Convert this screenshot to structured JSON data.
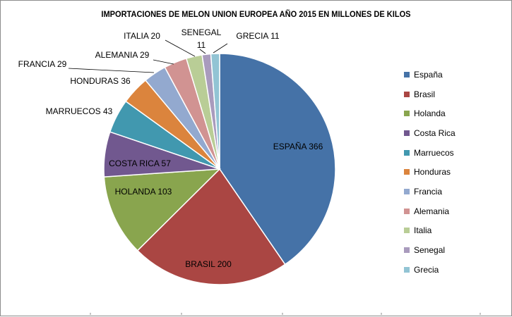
{
  "chart_data": {
    "type": "pie",
    "title": "IMPORTACIONES DE MELON UNION EUROPEA AÑO 2015 EN MILLONES DE KILOS",
    "categories": [
      "España",
      "Brasil",
      "Holanda",
      "Costa Rica",
      "Marruecos",
      "Honduras",
      "Francia",
      "Alemania",
      "Italia",
      "Senegal",
      "Grecia"
    ],
    "values": [
      366,
      200,
      103,
      57,
      43,
      36,
      29,
      29,
      20,
      11,
      11
    ],
    "data_labels": [
      "ESPAÑA 366",
      "BRASIL 200",
      "HOLANDA 103",
      "COSTA RICA 57",
      "MARRUECOS 43",
      "HONDURAS 36",
      "FRANCIA 29",
      "ALEMANIA 29",
      "ITALIA 20",
      "SENEGAL 11",
      "GRECIA 11"
    ],
    "colors": [
      "#4572a7",
      "#aa4643",
      "#89a54e",
      "#71588f",
      "#4198af",
      "#db843d",
      "#93a9cf",
      "#d19392",
      "#b9cd96",
      "#a99bbd",
      "#92c4d4"
    ],
    "legend_position": "right"
  }
}
